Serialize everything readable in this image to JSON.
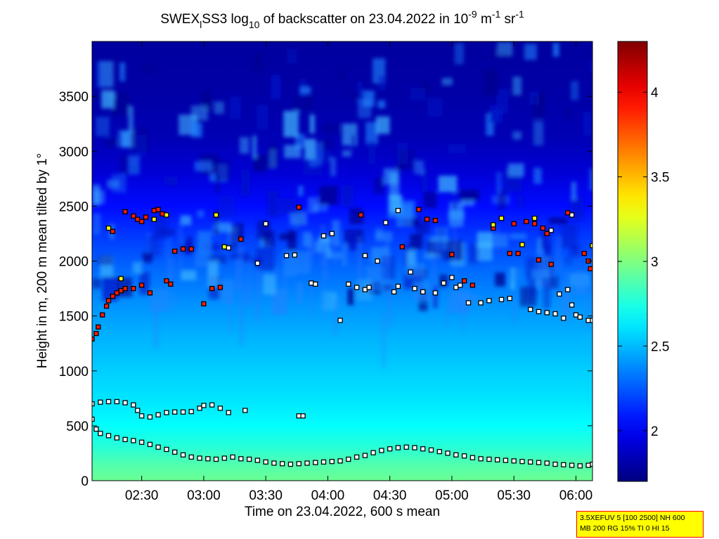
{
  "chart_data": {
    "type": "heatmap",
    "title": {
      "p1": "SWEX",
      "p1_sub": "l",
      "p2": "SS3 log",
      "p2_sub": "10",
      "p3": " of backscatter on 23.04.2022 in 10",
      "p3_sup": "-9",
      "p4": " m",
      "p4_sup": "-1",
      "p5": " sr",
      "p5_sup": "-1"
    },
    "xlabel": "Time on 23.04.2022, 600 s mean",
    "ylabel": "Height in m, 200 m mean tilted by 1°",
    "x_range": [
      "02:06",
      "06:08"
    ],
    "ylim": [
      0,
      4000
    ],
    "x_ticks": [
      {
        "t": "02:30",
        "label": "02:30"
      },
      {
        "t": "03:00",
        "label": "03:00"
      },
      {
        "t": "03:30",
        "label": "03:30"
      },
      {
        "t": "04:00",
        "label": "04:00"
      },
      {
        "t": "04:30",
        "label": "04:30"
      },
      {
        "t": "05:00",
        "label": "05:00"
      },
      {
        "t": "05:30",
        "label": "05:30"
      },
      {
        "t": "06:00",
        "label": "06:00"
      }
    ],
    "y_ticks": [
      {
        "v": 0,
        "label": "0"
      },
      {
        "v": 500,
        "label": "500"
      },
      {
        "v": 1000,
        "label": "1000"
      },
      {
        "v": 1500,
        "label": "1500"
      },
      {
        "v": 2000,
        "label": "2000"
      },
      {
        "v": 2500,
        "label": "2500"
      },
      {
        "v": 3000,
        "label": "3000"
      },
      {
        "v": 3500,
        "label": "3500"
      }
    ],
    "colorbar": {
      "colormap": "jet",
      "min": 1.7,
      "max": 4.3,
      "ticks": [
        {
          "v": 2,
          "label": "2"
        },
        {
          "v": 2.5,
          "label": "2.5"
        },
        {
          "v": 3,
          "label": "3"
        },
        {
          "v": 3.5,
          "label": "3.5"
        },
        {
          "v": 4,
          "label": "4"
        }
      ]
    },
    "background_profile": [
      {
        "h": 0,
        "v": 2.95
      },
      {
        "h": 150,
        "v": 2.88
      },
      {
        "h": 300,
        "v": 2.78
      },
      {
        "h": 500,
        "v": 2.68
      },
      {
        "h": 700,
        "v": 2.62
      },
      {
        "h": 1000,
        "v": 2.55
      },
      {
        "h": 1300,
        "v": 2.48
      },
      {
        "h": 1600,
        "v": 2.4
      },
      {
        "h": 1900,
        "v": 2.3
      },
      {
        "h": 2200,
        "v": 2.18
      },
      {
        "h": 2500,
        "v": 2.05
      },
      {
        "h": 2800,
        "v": 1.92
      },
      {
        "h": 3100,
        "v": 1.84
      },
      {
        "h": 3500,
        "v": 1.8
      },
      {
        "h": 4000,
        "v": 1.78
      }
    ],
    "series": [
      {
        "marker": "white-square",
        "points": [
          [
            "02:06",
            560
          ],
          [
            "02:08",
            470
          ],
          [
            "02:10",
            430
          ],
          [
            "02:14",
            410
          ],
          [
            "02:18",
            390
          ],
          [
            "02:22",
            375
          ],
          [
            "02:26",
            365
          ],
          [
            "02:30",
            350
          ],
          [
            "02:34",
            330
          ],
          [
            "02:38",
            305
          ],
          [
            "02:42",
            285
          ],
          [
            "02:46",
            260
          ],
          [
            "02:50",
            235
          ],
          [
            "02:54",
            215
          ],
          [
            "02:58",
            205
          ],
          [
            "03:02",
            200
          ],
          [
            "03:06",
            195
          ],
          [
            "03:10",
            205
          ],
          [
            "03:14",
            215
          ],
          [
            "03:18",
            200
          ],
          [
            "03:22",
            195
          ],
          [
            "03:26",
            185
          ],
          [
            "03:30",
            170
          ],
          [
            "03:34",
            160
          ],
          [
            "03:38",
            155
          ],
          [
            "03:42",
            150
          ],
          [
            "03:46",
            155
          ],
          [
            "03:50",
            160
          ],
          [
            "03:54",
            165
          ],
          [
            "03:58",
            170
          ],
          [
            "04:02",
            175
          ],
          [
            "04:06",
            180
          ],
          [
            "04:10",
            195
          ],
          [
            "04:14",
            215
          ],
          [
            "04:18",
            230
          ],
          [
            "04:22",
            255
          ],
          [
            "04:26",
            275
          ],
          [
            "04:30",
            290
          ],
          [
            "04:34",
            300
          ],
          [
            "04:38",
            305
          ],
          [
            "04:42",
            300
          ],
          [
            "04:46",
            290
          ],
          [
            "04:50",
            280
          ],
          [
            "04:54",
            265
          ],
          [
            "04:58",
            250
          ],
          [
            "05:02",
            235
          ],
          [
            "05:06",
            225
          ],
          [
            "05:10",
            210
          ],
          [
            "05:14",
            200
          ],
          [
            "05:18",
            195
          ],
          [
            "05:22",
            190
          ],
          [
            "05:26",
            185
          ],
          [
            "05:30",
            180
          ],
          [
            "05:34",
            175
          ],
          [
            "05:38",
            170
          ],
          [
            "05:42",
            165
          ],
          [
            "05:46",
            160
          ],
          [
            "05:50",
            150
          ],
          [
            "05:54",
            145
          ],
          [
            "05:58",
            140
          ],
          [
            "06:02",
            135
          ],
          [
            "06:06",
            140
          ],
          [
            "06:08",
            150
          ],
          [
            "02:06",
            700
          ],
          [
            "02:10",
            715
          ],
          [
            "02:14",
            720
          ],
          [
            "02:18",
            720
          ],
          [
            "02:22",
            710
          ],
          [
            "02:26",
            690
          ],
          [
            "02:28",
            640
          ],
          [
            "02:30",
            590
          ],
          [
            "02:34",
            580
          ],
          [
            "02:38",
            600
          ],
          [
            "02:42",
            620
          ],
          [
            "02:46",
            625
          ],
          [
            "02:50",
            625
          ],
          [
            "02:54",
            630
          ],
          [
            "02:58",
            660
          ],
          [
            "03:00",
            685
          ],
          [
            "03:04",
            690
          ],
          [
            "03:08",
            660
          ],
          [
            "03:12",
            620
          ],
          [
            "03:20",
            640
          ],
          [
            "03:46",
            590
          ],
          [
            "03:48",
            590
          ],
          [
            "03:40",
            2050
          ],
          [
            "03:44",
            2055
          ],
          [
            "03:52",
            1800
          ],
          [
            "03:54",
            1790
          ],
          [
            "03:58",
            2230
          ],
          [
            "04:02",
            2250
          ],
          [
            "04:06",
            1460
          ],
          [
            "04:10",
            1790
          ],
          [
            "04:14",
            1760
          ],
          [
            "04:18",
            1740
          ],
          [
            "04:20",
            1760
          ],
          [
            "04:24",
            2000
          ],
          [
            "04:28",
            2350
          ],
          [
            "04:32",
            1720
          ],
          [
            "04:34",
            1770
          ],
          [
            "04:40",
            1900
          ],
          [
            "04:42",
            1750
          ],
          [
            "04:46",
            1720
          ],
          [
            "04:52",
            1710
          ],
          [
            "04:56",
            1800
          ],
          [
            "05:00",
            1850
          ],
          [
            "05:02",
            1760
          ],
          [
            "05:04",
            1780
          ],
          [
            "05:08",
            1620
          ],
          [
            "05:14",
            1620
          ],
          [
            "05:18",
            1640
          ],
          [
            "05:24",
            1650
          ],
          [
            "05:28",
            1660
          ],
          [
            "05:38",
            1560
          ],
          [
            "05:42",
            1540
          ],
          [
            "05:46",
            1530
          ],
          [
            "05:50",
            1520
          ],
          [
            "05:54",
            1480
          ],
          [
            "05:58",
            1600
          ],
          [
            "06:00",
            1510
          ],
          [
            "06:02",
            1490
          ],
          [
            "06:06",
            1460
          ],
          [
            "06:08",
            1460
          ],
          [
            "05:52",
            1700
          ],
          [
            "05:56",
            1740
          ],
          [
            "03:12",
            2120
          ],
          [
            "03:30",
            2340
          ],
          [
            "03:26",
            1980
          ],
          [
            "04:18",
            2050
          ],
          [
            "05:48",
            2280
          ],
          [
            "05:58",
            2420
          ],
          [
            "04:34",
            2460
          ]
        ]
      },
      {
        "marker": "red-square",
        "points": [
          [
            "02:06",
            1290
          ],
          [
            "02:08",
            1340
          ],
          [
            "02:09",
            1400
          ],
          [
            "02:11",
            1510
          ],
          [
            "02:13",
            1590
          ],
          [
            "02:14",
            1640
          ],
          [
            "02:16",
            1680
          ],
          [
            "02:18",
            1710
          ],
          [
            "02:20",
            1730
          ],
          [
            "02:22",
            1750
          ],
          [
            "02:26",
            1750
          ],
          [
            "02:30",
            1780
          ],
          [
            "02:34",
            1710
          ],
          [
            "02:16",
            2270
          ],
          [
            "02:22",
            2450
          ],
          [
            "02:26",
            2410
          ],
          [
            "02:28",
            2380
          ],
          [
            "02:30",
            2360
          ],
          [
            "02:32",
            2400
          ],
          [
            "02:36",
            2460
          ],
          [
            "02:38",
            2470
          ],
          [
            "02:40",
            2430
          ],
          [
            "02:42",
            1820
          ],
          [
            "02:44",
            1790
          ],
          [
            "02:46",
            2090
          ],
          [
            "02:50",
            2110
          ],
          [
            "02:54",
            2110
          ],
          [
            "03:00",
            1610
          ],
          [
            "03:04",
            1750
          ],
          [
            "03:08",
            1760
          ],
          [
            "03:18",
            2200
          ],
          [
            "03:46",
            2490
          ],
          [
            "04:16",
            2420
          ],
          [
            "04:36",
            2130
          ],
          [
            "04:44",
            2470
          ],
          [
            "04:48",
            2380
          ],
          [
            "04:52",
            2370
          ],
          [
            "05:00",
            2060
          ],
          [
            "05:06",
            1820
          ],
          [
            "05:10",
            1780
          ],
          [
            "05:28",
            2070
          ],
          [
            "05:32",
            2070
          ],
          [
            "05:36",
            2360
          ],
          [
            "05:40",
            2340
          ],
          [
            "05:44",
            2300
          ],
          [
            "05:46",
            2250
          ],
          [
            "05:48",
            1970
          ],
          [
            "05:56",
            2440
          ],
          [
            "06:04",
            2070
          ],
          [
            "06:06",
            2000
          ],
          [
            "06:07",
            1930
          ],
          [
            "05:42",
            2010
          ],
          [
            "05:30",
            2340
          ],
          [
            "05:20",
            2300
          ]
        ]
      },
      {
        "marker": "yellow-square",
        "points": [
          [
            "02:14",
            2300
          ],
          [
            "02:20",
            1840
          ],
          [
            "02:36",
            2380
          ],
          [
            "03:06",
            2420
          ],
          [
            "03:10",
            2130
          ],
          [
            "05:20",
            2330
          ],
          [
            "05:24",
            2390
          ],
          [
            "05:34",
            2150
          ],
          [
            "05:40",
            2390
          ],
          [
            "06:08",
            2140
          ],
          [
            "02:42",
            2420
          ]
        ]
      }
    ]
  },
  "info_box": {
    "line1": "3.5XEFUV 5 [100 2500] NH 600",
    "line2": "MB 200 RG 15% TI 0 HI 15"
  }
}
